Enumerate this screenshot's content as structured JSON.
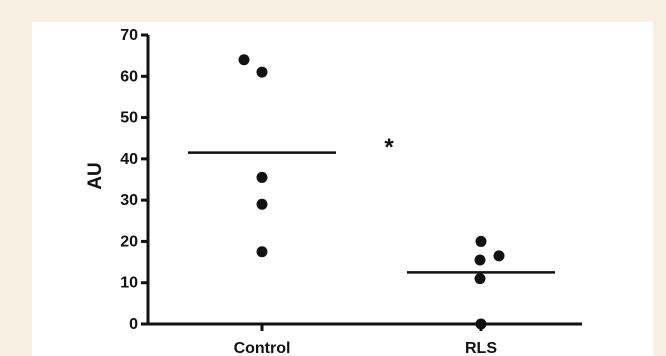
{
  "chart_data": {
    "type": "scatter",
    "title": "",
    "xlabel": "",
    "ylabel": "AU",
    "ylim": [
      0,
      70
    ],
    "yticks": [
      0,
      10,
      20,
      30,
      40,
      50,
      60,
      70
    ],
    "categories": [
      "Control",
      "RLS"
    ],
    "series": [
      {
        "category": "Control",
        "values": [
          64,
          61,
          35.5,
          29,
          17.5
        ],
        "mean": 41.5
      },
      {
        "category": "RLS",
        "values": [
          20,
          16.5,
          15.5,
          11,
          0
        ],
        "mean": 12.5
      }
    ],
    "annotations": [
      {
        "text": "*"
      }
    ],
    "grid": false,
    "colors": {
      "background": "#f6efe2",
      "panel": "#ffffff",
      "marks": "#111111"
    }
  }
}
